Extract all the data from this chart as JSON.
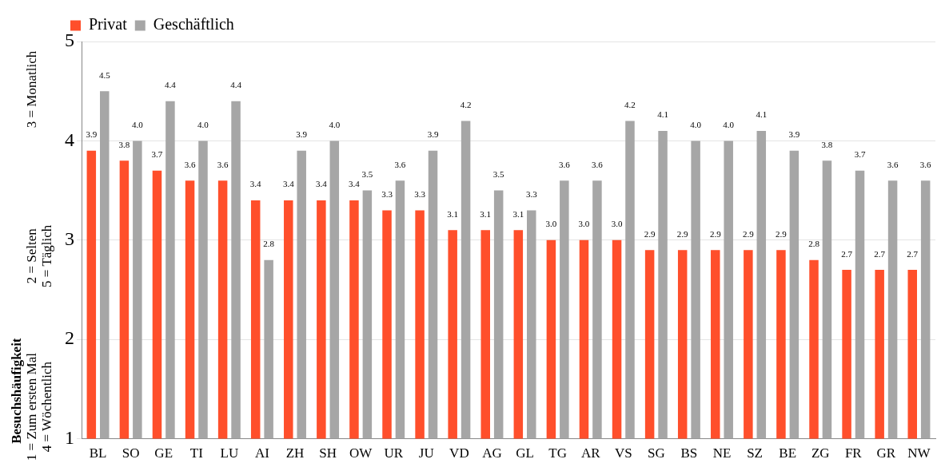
{
  "chart_data": {
    "type": "bar",
    "ylabel": "Besuchshäufigkeit",
    "annotations": [
      "1 = Zum ersten Mal",
      "2 = Selten",
      "3 = Monatlich",
      "4 = Wöchentlich",
      "5 = Täglich"
    ],
    "categories": [
      "BL",
      "SO",
      "GE",
      "TI",
      "LU",
      "AI",
      "ZH",
      "SH",
      "OW",
      "UR",
      "JU",
      "VD",
      "AG",
      "GL",
      "TG",
      "AR",
      "VS",
      "SG",
      "BS",
      "NE",
      "SZ",
      "BE",
      "ZG",
      "FR",
      "GR",
      "NW"
    ],
    "series": [
      {
        "name": "Privat",
        "color": "#ff4f2b",
        "values": [
          3.9,
          3.8,
          3.7,
          3.6,
          3.6,
          3.4,
          3.4,
          3.4,
          3.4,
          3.3,
          3.3,
          3.1,
          3.1,
          3.1,
          3.0,
          3.0,
          3.0,
          2.9,
          2.9,
          2.9,
          2.9,
          2.9,
          2.8,
          2.7,
          2.7,
          2.7
        ],
        "value_labels": [
          "3.9",
          "3.8",
          "3.7",
          "3.6",
          "3.6",
          "3.4",
          "3.4",
          "3.4",
          "3.4",
          "3.3",
          "3.3",
          "3.1",
          "3.1",
          "3.1",
          "3.0",
          "3.0",
          "3.0",
          "2.9",
          "2.9",
          "2.9",
          "2.9",
          "2.9",
          "2.8",
          "2.7",
          "2.7",
          "2.7"
        ]
      },
      {
        "name": "Geschäftlich",
        "color": "#a6a6a6",
        "values": [
          4.5,
          4.0,
          4.4,
          4.0,
          4.4,
          2.8,
          3.9,
          4.0,
          3.5,
          3.6,
          3.9,
          4.2,
          3.5,
          3.3,
          3.6,
          3.6,
          4.2,
          4.1,
          4.0,
          4.0,
          4.1,
          3.9,
          3.8,
          3.7,
          3.6,
          3.6
        ],
        "value_labels": [
          "4.5",
          "4.0",
          "4.4",
          "4.0",
          "4.4",
          "2.8",
          "3.9",
          "4.0",
          "3.5",
          "3.6",
          "3.9",
          "4.2",
          "3.5",
          "3.3",
          "3.6",
          "3.6",
          "4.2",
          "4.1",
          "4.0",
          "4.0",
          "4.1",
          "3.9",
          "3.8",
          "3.7",
          "3.6",
          "3.6"
        ]
      }
    ],
    "ylim": [
      1,
      5
    ],
    "yticks": [
      1,
      2,
      3,
      4,
      5
    ],
    "grid": "y",
    "legend": "top left"
  }
}
